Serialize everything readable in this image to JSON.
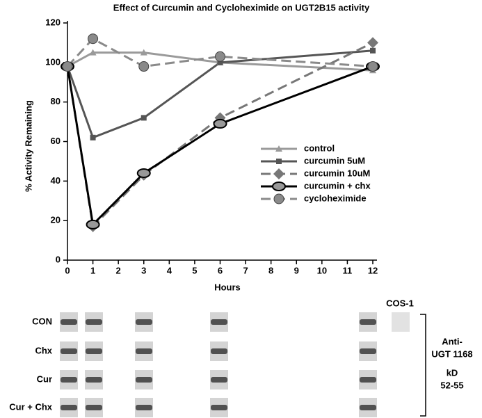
{
  "chart_data": {
    "type": "line",
    "title": "Effect of Curcumin and Cycloheximide on UGT2B15 activity",
    "x_label": "Hours",
    "y_label": "% Activity Remaining",
    "x": [
      0,
      1,
      3,
      6,
      12
    ],
    "xlim": [
      0,
      12
    ],
    "xticks": [
      0,
      1,
      2,
      3,
      4,
      5,
      6,
      7,
      8,
      9,
      10,
      11,
      12
    ],
    "ylim": [
      0,
      120
    ],
    "yticks": [
      0,
      20,
      40,
      60,
      80,
      100,
      120
    ],
    "legend": "center-right",
    "series": [
      {
        "name": "control",
        "color": "#9a9a9a",
        "marker": "triangle",
        "dashed": false,
        "values": [
          98,
          105,
          105,
          100,
          96
        ]
      },
      {
        "name": "curcumin 5uM",
        "color": "#555555",
        "marker": "square",
        "dashed": false,
        "values": [
          98,
          62,
          72,
          100,
          106
        ]
      },
      {
        "name": "curcumin 10uM",
        "color": "#777777",
        "marker": "diamond",
        "dashed": true,
        "values": [
          98,
          17,
          43,
          72,
          110
        ]
      },
      {
        "name": "curcumin + chx",
        "color": "#000000",
        "marker": "ellipse",
        "dashed": false,
        "values": [
          98,
          18,
          44,
          69,
          98
        ]
      },
      {
        "name": "cycloheximide",
        "color": "#8a8a8a",
        "marker": "circle",
        "dashed": true,
        "values": [
          98,
          112,
          98,
          103,
          98
        ]
      }
    ]
  },
  "blot": {
    "row_labels": [
      "CON",
      "Chx",
      "Cur",
      "Cur + Chx"
    ],
    "control_lane": "COS-1",
    "side_labels": [
      "Anti-",
      "UGT 1168",
      "kD",
      "52-55"
    ]
  }
}
